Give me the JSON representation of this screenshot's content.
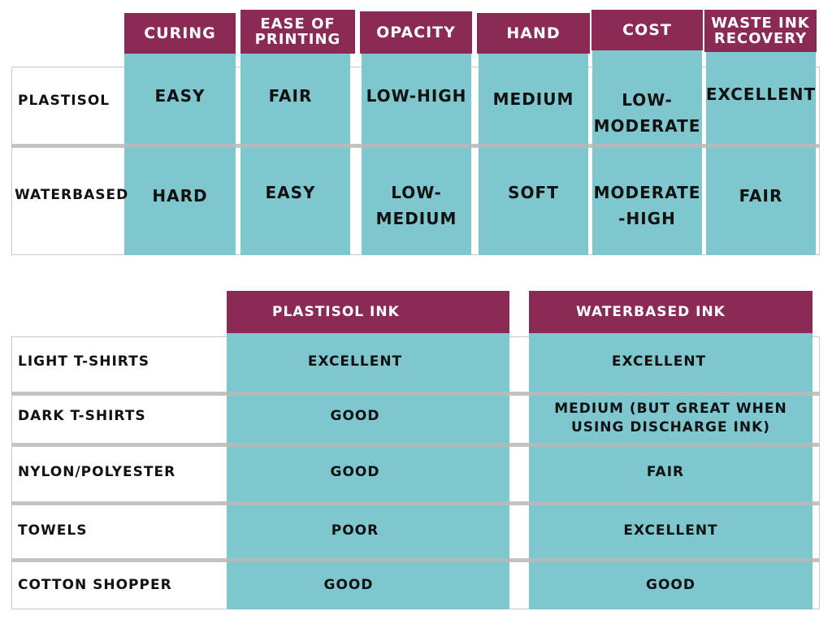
{
  "colors": {
    "header_bg": "#8b2a55",
    "cell_bg": "#7fc7cf"
  },
  "table1": {
    "columns": [
      "CURING",
      "EASE OF\nPRINTING",
      "OPACITY",
      "HAND",
      "COST",
      "WASTE INK\nRECOVERY"
    ],
    "rows": [
      {
        "label": "PLASTISOL",
        "cells": [
          "EASY",
          "FAIR",
          "LOW-HIGH",
          "MEDIUM",
          "LOW-\nMODERATE",
          "EXCELLENT"
        ]
      },
      {
        "label": "WATERBASED",
        "cells": [
          "HARD",
          "EASY",
          "LOW-\nMEDIUM",
          "SOFT",
          "MODERATE\n-HIGH",
          "FAIR"
        ]
      }
    ]
  },
  "table2": {
    "columns": [
      "PLASTISOL INK",
      "WATERBASED INK"
    ],
    "rows": [
      {
        "label": "LIGHT T-SHIRTS",
        "cells": [
          "EXCELLENT",
          "EXCELLENT"
        ]
      },
      {
        "label": "DARK T-SHIRTS",
        "cells": [
          "GOOD",
          "MEDIUM (BUT GREAT WHEN\nUSING DISCHARGE INK)"
        ]
      },
      {
        "label": "NYLON/POLYESTER",
        "cells": [
          "GOOD",
          "FAIR"
        ]
      },
      {
        "label": "TOWELS",
        "cells": [
          "POOR",
          "EXCELLENT"
        ]
      },
      {
        "label": "COTTON SHOPPER",
        "cells": [
          "GOOD",
          "GOOD"
        ]
      }
    ]
  }
}
